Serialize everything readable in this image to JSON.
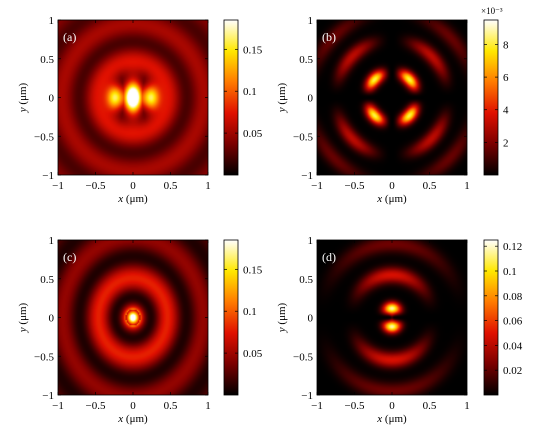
{
  "figure": {
    "colormap": [
      "#000000",
      "#7a0000",
      "#e01000",
      "#ff7a00",
      "#ffe800",
      "#ffffff"
    ]
  },
  "chart_data": [
    {
      "type": "heatmap",
      "panel_label": "(a)",
      "pattern": "bright center ring with two lobes along x, diffraction rings",
      "xlabel": "x (μm)",
      "ylabel": "y (μm)",
      "xlim": [
        -1,
        1
      ],
      "ylim": [
        -1,
        1
      ],
      "xticks": [
        "−1",
        "−0.5",
        "0",
        "0.5",
        "1"
      ],
      "yticks": [
        "−1",
        "−0.5",
        "0",
        "0.5",
        "1"
      ],
      "clim": [
        0,
        0.185
      ],
      "colorbar_ticks": [
        0.05,
        0.1,
        0.15
      ],
      "colorbar_tick_labels": [
        "0.05",
        "0.1",
        "0.15"
      ],
      "colorbar_exponent": ""
    },
    {
      "type": "heatmap",
      "panel_label": "(b)",
      "pattern": "four bright spots in quadrants with dark cross through center",
      "xlabel": "x (μm)",
      "ylabel": "y (μm)",
      "xlim": [
        -1,
        1
      ],
      "ylim": [
        -1,
        1
      ],
      "xticks": [
        "−1",
        "−0.5",
        "0",
        "0.5",
        "1"
      ],
      "yticks": [
        "−1",
        "−0.5",
        "0",
        "0.5",
        "1"
      ],
      "clim": [
        0,
        9.5
      ],
      "colorbar_ticks": [
        2,
        4,
        6,
        8
      ],
      "colorbar_tick_labels": [
        "2",
        "4",
        "6",
        "8"
      ],
      "colorbar_exponent": "×10⁻³"
    },
    {
      "type": "heatmap",
      "panel_label": "(c)",
      "pattern": "bright central spot surrounded by concentric rings",
      "xlabel": "x (μm)",
      "ylabel": "y (μm)",
      "xlim": [
        -1,
        1
      ],
      "ylim": [
        -1,
        1
      ],
      "xticks": [
        "−1",
        "−0.5",
        "0",
        "0.5",
        "1"
      ],
      "yticks": [
        "−1",
        "−0.5",
        "0",
        "0.5",
        "1"
      ],
      "clim": [
        0,
        0.185
      ],
      "colorbar_ticks": [
        0.05,
        0.1,
        0.15
      ],
      "colorbar_tick_labels": [
        "0.05",
        "0.1",
        "0.15"
      ],
      "colorbar_exponent": ""
    },
    {
      "type": "heatmap",
      "panel_label": "(d)",
      "pattern": "two bright lobes above and below center with dark horizontal node",
      "xlabel": "x (μm)",
      "ylabel": "y (μm)",
      "xlim": [
        -1,
        1
      ],
      "ylim": [
        -1,
        1
      ],
      "xticks": [
        "−1",
        "−0.5",
        "0",
        "0.5",
        "1"
      ],
      "yticks": [
        "−1",
        "−0.5",
        "0",
        "0.5",
        "1"
      ],
      "clim": [
        0,
        0.125
      ],
      "colorbar_ticks": [
        0.02,
        0.04,
        0.06,
        0.08,
        0.1,
        0.12
      ],
      "colorbar_tick_labels": [
        "0.02",
        "0.04",
        "0.06",
        "0.08",
        "0.1",
        "0.12"
      ],
      "colorbar_exponent": ""
    }
  ]
}
